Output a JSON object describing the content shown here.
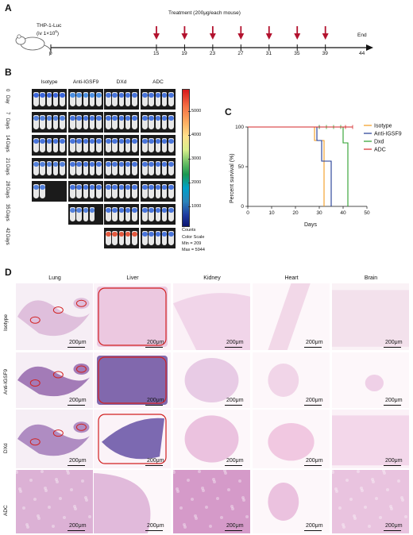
{
  "panels": {
    "a": "A",
    "b": "B",
    "c": "C",
    "d": "D"
  },
  "timeline": {
    "cell_line": "THP-1-Luc",
    "dose_prefix": "(iv 1×10",
    "dose_exp": "6",
    "dose_suffix": ")",
    "treatment": "Treatment (200μg/each mouse)",
    "end": "End",
    "start_day": "0",
    "days": [
      "15",
      "19",
      "23",
      "27",
      "31",
      "35",
      "39"
    ],
    "end_day": "44"
  },
  "imaging": {
    "groups": [
      "Isotype",
      "Anti-IGSF9",
      "DXd",
      "ADC"
    ],
    "timepoints": [
      {
        "num": "0",
        "unit": "Day"
      },
      {
        "num": "7",
        "unit": "Days"
      },
      {
        "num": "14",
        "unit": "Days"
      },
      {
        "num": "21",
        "unit": "Days"
      },
      {
        "num": "28",
        "unit": "Days"
      },
      {
        "num": "35",
        "unit": "Days"
      },
      {
        "num": "42",
        "unit": "Days"
      }
    ],
    "colorbar_ticks": [
      "5000",
      "4000",
      "3000",
      "2000",
      "1000"
    ],
    "counts": "Counts",
    "color_scale": "Color Scale",
    "min": "Min = 209",
    "max": "Max = 5944"
  },
  "chart_data": {
    "type": "line",
    "title": "",
    "xlabel": "Days",
    "ylabel": "Percent survival (%)",
    "xlim": [
      0,
      50
    ],
    "ylim": [
      0,
      100
    ],
    "xticks": [
      "0",
      "10",
      "20",
      "30",
      "40",
      "50"
    ],
    "yticks": [
      "0",
      "50",
      "100"
    ],
    "series": [
      {
        "name": "Isotype",
        "color": "#f39c1f",
        "steps": [
          [
            0,
            100
          ],
          [
            28,
            100
          ],
          [
            28,
            83
          ],
          [
            32,
            83
          ],
          [
            32,
            0
          ]
        ],
        "censor": []
      },
      {
        "name": "Anti-IGSF9",
        "color": "#1f3a93",
        "steps": [
          [
            0,
            100
          ],
          [
            29,
            100
          ],
          [
            29,
            83
          ],
          [
            31,
            83
          ],
          [
            31,
            57
          ],
          [
            35,
            57
          ],
          [
            35,
            0
          ]
        ],
        "censor": [
          [
            30,
            100
          ]
        ]
      },
      {
        "name": "Dxd",
        "color": "#2ca02c",
        "steps": [
          [
            0,
            100
          ],
          [
            40,
            100
          ],
          [
            40,
            80
          ],
          [
            42,
            80
          ],
          [
            42,
            0
          ]
        ],
        "censor": [
          [
            30,
            100
          ],
          [
            33,
            100
          ],
          [
            36,
            100
          ],
          [
            39,
            100
          ]
        ]
      },
      {
        "name": "ADC",
        "color": "#d62728",
        "steps": [
          [
            0,
            100
          ],
          [
            44,
            100
          ]
        ],
        "censor": [
          [
            41,
            100
          ],
          [
            44,
            100
          ]
        ]
      }
    ]
  },
  "histology": {
    "organs": [
      "Lung",
      "Liver",
      "Kidney",
      "Heart",
      "Brain"
    ],
    "groups": [
      "Isotype",
      "Anti-IGSF9",
      "DXd",
      "ADC"
    ],
    "scale": "200μm"
  }
}
